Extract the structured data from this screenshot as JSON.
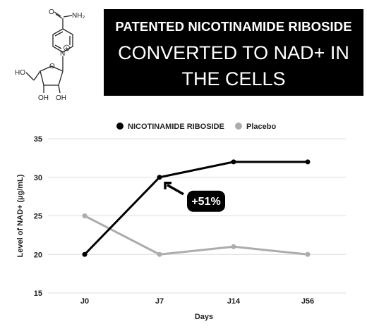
{
  "molecule": {
    "amide_label": "NH₂",
    "oxygen_label": "O",
    "nitrogen_label": "N",
    "charge_label": "+",
    "ring_oxygen_label": "O",
    "hydroxymethyl_label": "HO",
    "hydroxyl_left_label": "OH",
    "hydroxyl_right_label": "OH"
  },
  "banner": {
    "line1": "PATENTED NICOTINAMIDE RIBOSIDE",
    "line2": "CONVERTED TO NAD+ IN",
    "line3": "THE CELLS"
  },
  "colors": {
    "nr_series": "#000000",
    "placebo_series": "#a9adb0",
    "grid": "#dcdcdc",
    "banner_bg": "#000000",
    "callout_bg": "#000000"
  },
  "chart_data": {
    "type": "line",
    "categories": [
      "J0",
      "J7",
      "J14",
      "J56"
    ],
    "series": [
      {
        "name": "NICOTINAMIDE RIBOSIDE",
        "values": [
          20,
          30,
          32,
          32
        ],
        "color": "#000000"
      },
      {
        "name": "Placebo",
        "values": [
          25,
          20,
          21,
          20
        ],
        "color": "#a9adb0"
      }
    ],
    "xlabel": "Days",
    "ylabel": "Level of NAD+ (µg/mL)",
    "ylim": [
      15,
      35
    ],
    "yticks": [
      15,
      20,
      25,
      30,
      35
    ],
    "grid": true,
    "legend_position": "top",
    "annotation": {
      "text": "+51%",
      "category": "J7",
      "series": "NICOTINAMIDE RIBOSIDE"
    }
  }
}
